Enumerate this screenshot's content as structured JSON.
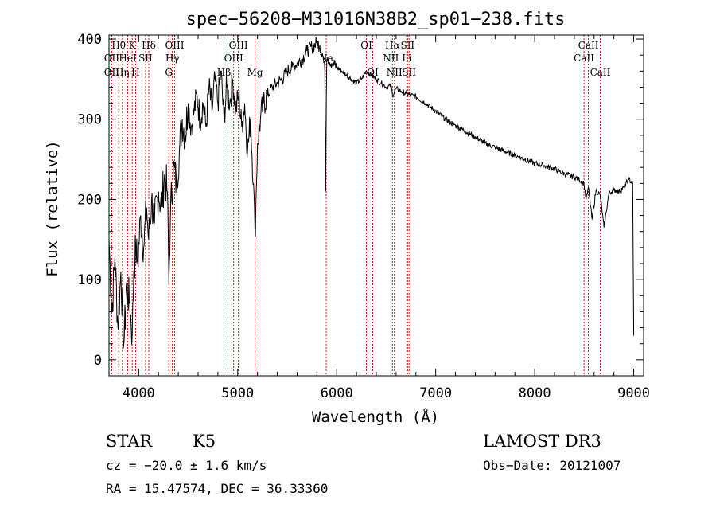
{
  "chart_data": {
    "type": "line",
    "title": "spec−56208−M31016N38B2_sp01−238.fits",
    "xlabel": "Wavelength (Å)",
    "ylabel": "Flux (relative)",
    "xlim": [
      3700,
      9100
    ],
    "ylim": [
      -20,
      405
    ],
    "xticks": [
      4000,
      5000,
      6000,
      7000,
      8000,
      9000
    ],
    "xtick_labels": [
      "4000",
      "5000",
      "6000",
      "7000",
      "8000",
      "9000"
    ],
    "yticks": [
      0,
      100,
      200,
      300,
      400
    ],
    "ytick_labels": [
      "0",
      "100",
      "200",
      "300",
      "400"
    ],
    "series": [
      {
        "name": "spectrum",
        "x": [
          3700,
          3730,
          3760,
          3790,
          3820,
          3850,
          3880,
          3910,
          3935,
          3950,
          3970,
          3990,
          4020,
          4050,
          4080,
          4100,
          4130,
          4160,
          4200,
          4230,
          4260,
          4290,
          4305,
          4320,
          4350,
          4380,
          4410,
          4440,
          4470,
          4500,
          4530,
          4560,
          4590,
          4620,
          4650,
          4680,
          4710,
          4740,
          4770,
          4800,
          4830,
          4861,
          4890,
          4920,
          4950,
          4980,
          5010,
          5040,
          5070,
          5100,
          5130,
          5160,
          5175,
          5183,
          5200,
          5230,
          5260,
          5300,
          5350,
          5400,
          5450,
          5500,
          5550,
          5600,
          5650,
          5700,
          5750,
          5800,
          5830,
          5860,
          5880,
          5889,
          5895,
          5900,
          5910,
          5950,
          6000,
          6050,
          6100,
          6150,
          6200,
          6250,
          6300,
          6350,
          6400,
          6450,
          6500,
          6550,
          6563,
          6600,
          6650,
          6700,
          6750,
          6800,
          6900,
          7000,
          7100,
          7200,
          7300,
          7400,
          7500,
          7600,
          7700,
          7800,
          7900,
          8000,
          8100,
          8200,
          8300,
          8400,
          8450,
          8498,
          8520,
          8542,
          8580,
          8620,
          8662,
          8700,
          8750,
          8800,
          8850,
          8900,
          8950,
          8990,
          9000
        ],
        "values": [
          150,
          60,
          130,
          40,
          110,
          20,
          90,
          70,
          30,
          110,
          140,
          120,
          180,
          140,
          190,
          150,
          200,
          170,
          210,
          190,
          230,
          210,
          95,
          180,
          240,
          220,
          260,
          300,
          280,
          320,
          290,
          310,
          330,
          300,
          320,
          290,
          340,
          310,
          350,
          320,
          360,
          300,
          340,
          320,
          350,
          310,
          330,
          290,
          320,
          260,
          300,
          220,
          155,
          190,
          270,
          300,
          320,
          330,
          340,
          345,
          350,
          360,
          365,
          370,
          375,
          385,
          390,
          395,
          392,
          380,
          360,
          210,
          330,
          375,
          378,
          370,
          365,
          360,
          355,
          350,
          345,
          350,
          360,
          355,
          350,
          345,
          340,
          342,
          330,
          338,
          335,
          332,
          330,
          328,
          320,
          310,
          300,
          292,
          285,
          278,
          270,
          265,
          260,
          255,
          250,
          245,
          242,
          238,
          232,
          228,
          225,
          220,
          200,
          215,
          175,
          212,
          205,
          165,
          208,
          212,
          210,
          215,
          225,
          220,
          30
        ]
      }
    ],
    "spectral_lines": [
      {
        "label": "Hθ",
        "wavelength": 3798,
        "row": 1
      },
      {
        "label": "Hη",
        "wavelength": 3835,
        "row": 3
      },
      {
        "label": "OII",
        "wavelength": 3727,
        "row": 3
      },
      {
        "label": "OII",
        "wavelength": 3727,
        "row": 2
      },
      {
        "label": "HeI",
        "wavelength": 3889,
        "row": 2
      },
      {
        "label": "K",
        "wavelength": 3934,
        "row": 1
      },
      {
        "label": "SII",
        "wavelength": 4069,
        "row": 2
      },
      {
        "label": "H",
        "wavelength": 3969,
        "row": 3
      },
      {
        "label": "Hδ",
        "wavelength": 4102,
        "row": 1
      },
      {
        "label": "OIII",
        "wavelength": 4363,
        "row": 1
      },
      {
        "label": "Hγ",
        "wavelength": 4340,
        "row": 2
      },
      {
        "label": "G",
        "wavelength": 4304,
        "row": 3
      },
      {
        "label": "Hβ",
        "wavelength": 4861,
        "row": 3
      },
      {
        "label": "OIII",
        "wavelength": 5007,
        "row": 1
      },
      {
        "label": "OIII",
        "wavelength": 4959,
        "row": 2
      },
      {
        "label": "Mg",
        "wavelength": 5175,
        "row": 3
      },
      {
        "label": "Na",
        "wavelength": 5894,
        "row": 2
      },
      {
        "label": "OI",
        "wavelength": 6300,
        "row": 1
      },
      {
        "label": "OI",
        "wavelength": 6364,
        "row": 3
      },
      {
        "label": "Hα",
        "wavelength": 6563,
        "row": 1
      },
      {
        "label": "SII",
        "wavelength": 6716,
        "row": 1
      },
      {
        "label": "NII",
        "wavelength": 6548,
        "row": 2
      },
      {
        "label": "Li",
        "wavelength": 6708,
        "row": 2
      },
      {
        "label": "NII",
        "wavelength": 6583,
        "row": 3
      },
      {
        "label": "SII",
        "wavelength": 6731,
        "row": 3
      },
      {
        "label": "CaII",
        "wavelength": 8542,
        "row": 1
      },
      {
        "label": "CaII",
        "wavelength": 8498,
        "row": 2
      },
      {
        "label": "CaII",
        "wavelength": 8662,
        "row": 3
      }
    ],
    "line_marker_color": "#cc0000",
    "grid": false
  },
  "info": {
    "class_label": "STAR",
    "subclass": "K5",
    "survey": "LAMOST DR3",
    "redshift": "cz = −20.0 ± 1.6 km/s",
    "obs_date": "Obs−Date: 20121007",
    "coords": "RA =  15.47574, DEC =  36.33360"
  }
}
